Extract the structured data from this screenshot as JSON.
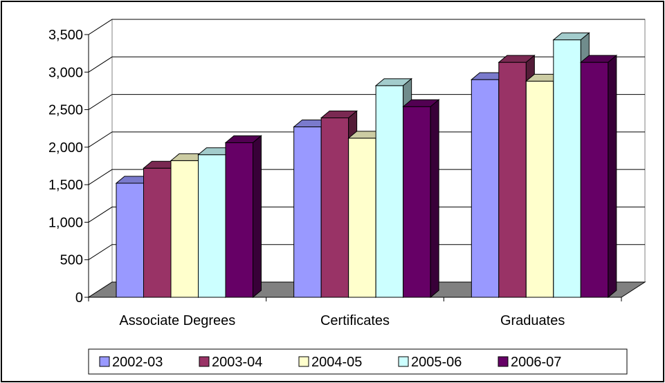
{
  "chart_data": {
    "type": "bar",
    "title": "",
    "xlabel": "",
    "ylabel": "",
    "ylim": [
      0,
      3500
    ],
    "yticks": [
      0,
      500,
      1000,
      1500,
      2000,
      2500,
      3000,
      3500
    ],
    "ytick_labels": [
      "0",
      "500",
      "1,000",
      "1,500",
      "2,000",
      "2,500",
      "3,000",
      "3,500"
    ],
    "grid": true,
    "bar_style": "3d-clustered",
    "legend_position": "bottom",
    "categories": [
      "Associate Degrees",
      "Certificates",
      "Graduates"
    ],
    "series": [
      {
        "name": "2002-03",
        "color": "#9999ff",
        "values": [
          1520,
          2270,
          2900
        ]
      },
      {
        "name": "2003-04",
        "color": "#993366",
        "values": [
          1720,
          2390,
          3130
        ]
      },
      {
        "name": "2004-05",
        "color": "#ffffcc",
        "values": [
          1820,
          2120,
          2880
        ]
      },
      {
        "name": "2005-06",
        "color": "#ccffff",
        "values": [
          1900,
          2820,
          3430
        ]
      },
      {
        "name": "2006-07",
        "color": "#660066",
        "values": [
          2060,
          2540,
          3130
        ]
      }
    ]
  }
}
